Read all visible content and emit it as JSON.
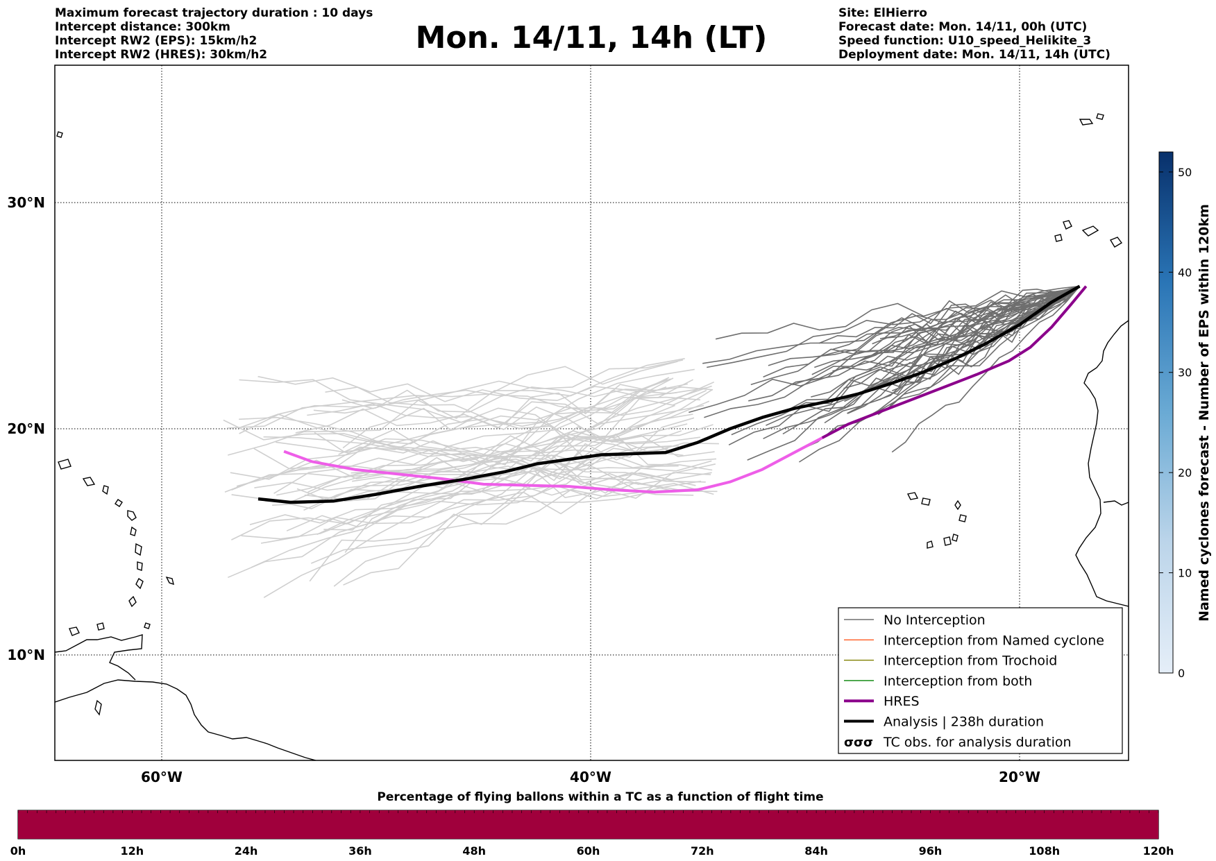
{
  "header": {
    "left": [
      "Maximum forecast trajectory duration : 10 days",
      "Intercept distance: 300km",
      "Intercept RW2 (EPS):  15km/h2",
      "Intercept RW2 (HRES): 30km/h2"
    ],
    "title": "Mon. 14/11, 14h (LT)",
    "right": [
      "Site: ElHierro",
      "Forecast date: Mon. 14/11, 00h (UTC)",
      "Speed function: U10_speed_Helikite_3",
      "Deployment date: Mon. 14/11, 14h (UTC)"
    ]
  },
  "map": {
    "lon_range": [
      -65,
      15
    ],
    "lat_range": [
      5,
      35
    ],
    "lat_ticks": [
      {
        "value": 30,
        "label": "30°N"
      },
      {
        "value": 20,
        "label": "20°N"
      },
      {
        "value": 10,
        "label": "10°N"
      }
    ],
    "lon_ticks": [
      {
        "value": -60,
        "label": "60°W"
      },
      {
        "value": -40,
        "label": "40°W"
      },
      {
        "value": -20,
        "label": "20°W"
      }
    ],
    "grid": "dotted"
  },
  "colors": {
    "no_interception": "#6e6e6e",
    "named_cyclone": "#ff5a1f",
    "trochoid": "#808000",
    "both": "#008000",
    "hres": "#8b008b",
    "hres_extension": "#ee5ee8",
    "analysis": "#000000",
    "light_tracks": "#cfcfcf",
    "progress_fill": "#a0003c",
    "colorbar_low": "#e5eef8",
    "colorbar_high": "#08306b"
  },
  "legend": {
    "items": [
      {
        "label": "No Interception",
        "key": "no_interception"
      },
      {
        "label": "Interception from Named cyclone",
        "key": "named_cyclone"
      },
      {
        "label": "Interception from Trochoid",
        "key": "trochoid"
      },
      {
        "label": "Interception from both",
        "key": "both"
      },
      {
        "label": "HRES",
        "key": "hres"
      },
      {
        "label": "Analysis | 238h duration",
        "key": "analysis"
      },
      {
        "label": "TC obs. for analysis duration",
        "key": "tc_obs",
        "icon": "cyclone-symbols-icon"
      }
    ]
  },
  "colorbar": {
    "label": "Named cyclones forecast - Number of EPS within 120km",
    "min": 0,
    "max": 52,
    "ticks": [
      0,
      10,
      20,
      30,
      40,
      50
    ]
  },
  "progress": {
    "caption": "Percentage of flying ballons within a TC as a function of flight time",
    "ticks": [
      "0h",
      "12h",
      "24h",
      "36h",
      "48h",
      "60h",
      "72h",
      "84h",
      "96h",
      "108h",
      "120h"
    ],
    "fill_fraction": 1.0
  },
  "tracks": {
    "analysis": [
      [
        -55.5,
        16.9
      ],
      [
        -54,
        16.75
      ],
      [
        -52,
        16.8
      ],
      [
        -50,
        17.1
      ],
      [
        -48,
        17.45
      ],
      [
        -46,
        17.75
      ],
      [
        -44,
        18.1
      ],
      [
        -42.5,
        18.45
      ],
      [
        -41,
        18.65
      ],
      [
        -39.5,
        18.85
      ],
      [
        -38,
        18.9
      ],
      [
        -36.5,
        18.95
      ],
      [
        -35,
        19.4
      ],
      [
        -33.5,
        20.0
      ],
      [
        -32,
        20.5
      ],
      [
        -30.5,
        20.9
      ],
      [
        -29,
        21.2
      ],
      [
        -27.5,
        21.55
      ],
      [
        -26,
        22.0
      ],
      [
        -24.5,
        22.5
      ],
      [
        -23,
        23.1
      ],
      [
        -21.5,
        23.8
      ],
      [
        -20,
        24.6
      ],
      [
        -18.5,
        25.6
      ],
      [
        -17.2,
        26.3
      ]
    ],
    "hres_extension": [
      [
        -54.3,
        19.0
      ],
      [
        -53,
        18.55
      ],
      [
        -51,
        18.2
      ],
      [
        -49,
        18.0
      ],
      [
        -47,
        17.8
      ],
      [
        -45,
        17.55
      ],
      [
        -43,
        17.5
      ],
      [
        -41,
        17.45
      ],
      [
        -39,
        17.3
      ],
      [
        -37,
        17.2
      ],
      [
        -35,
        17.3
      ],
      [
        -33.5,
        17.65
      ],
      [
        -32,
        18.2
      ],
      [
        -30.5,
        18.95
      ],
      [
        -29.2,
        19.6
      ]
    ],
    "hres": [
      [
        -29.2,
        19.6
      ],
      [
        -28,
        20.2
      ],
      [
        -26.5,
        20.75
      ],
      [
        -25,
        21.3
      ],
      [
        -23.5,
        21.85
      ],
      [
        -22,
        22.4
      ],
      [
        -20.5,
        23.0
      ],
      [
        -19.5,
        23.6
      ],
      [
        -18.5,
        24.5
      ],
      [
        -17.6,
        25.5
      ],
      [
        -16.9,
        26.3
      ]
    ],
    "dark_bundle": {
      "start": [
        -17.2,
        26.3
      ],
      "end_lon": [
        -35.5,
        -25.5
      ],
      "end_lat": [
        18.5,
        24.2
      ],
      "count": 42
    },
    "light_bundle": {
      "lon_range": [
        -57.5,
        -34
      ],
      "lat_range": [
        12.8,
        22.5
      ],
      "count": 52
    }
  },
  "sources": [
    {
      "name": "site-marker",
      "lon": -17.9,
      "lat": 27.7
    }
  ]
}
